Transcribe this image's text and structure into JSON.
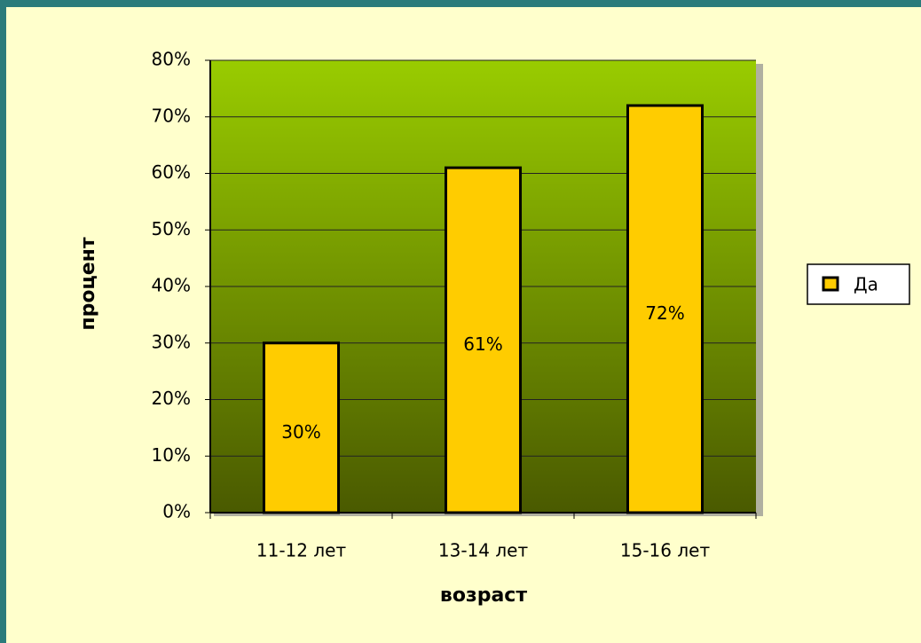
{
  "chart_data": {
    "type": "bar",
    "categories": [
      "11-12 лет",
      "13-14 лет",
      "15-16 лет"
    ],
    "series": [
      {
        "name": "Да",
        "color": "#ffcc00",
        "values": [
          30,
          61,
          72
        ],
        "value_labels": [
          "30%",
          "61%",
          "72%"
        ]
      }
    ],
    "ylim": [
      0,
      80
    ],
    "yticks": [
      {
        "value": 0,
        "label": "0%"
      },
      {
        "value": 10,
        "label": "10%"
      },
      {
        "value": 20,
        "label": "20%"
      },
      {
        "value": 30,
        "label": "30%"
      },
      {
        "value": 40,
        "label": "40%"
      },
      {
        "value": 50,
        "label": "50%"
      },
      {
        "value": 60,
        "label": "60%"
      },
      {
        "value": 70,
        "label": "70%"
      },
      {
        "value": 80,
        "label": "80%"
      }
    ],
    "xlabel": "возраст",
    "ylabel": "процент",
    "grid": true,
    "legend": "right"
  }
}
